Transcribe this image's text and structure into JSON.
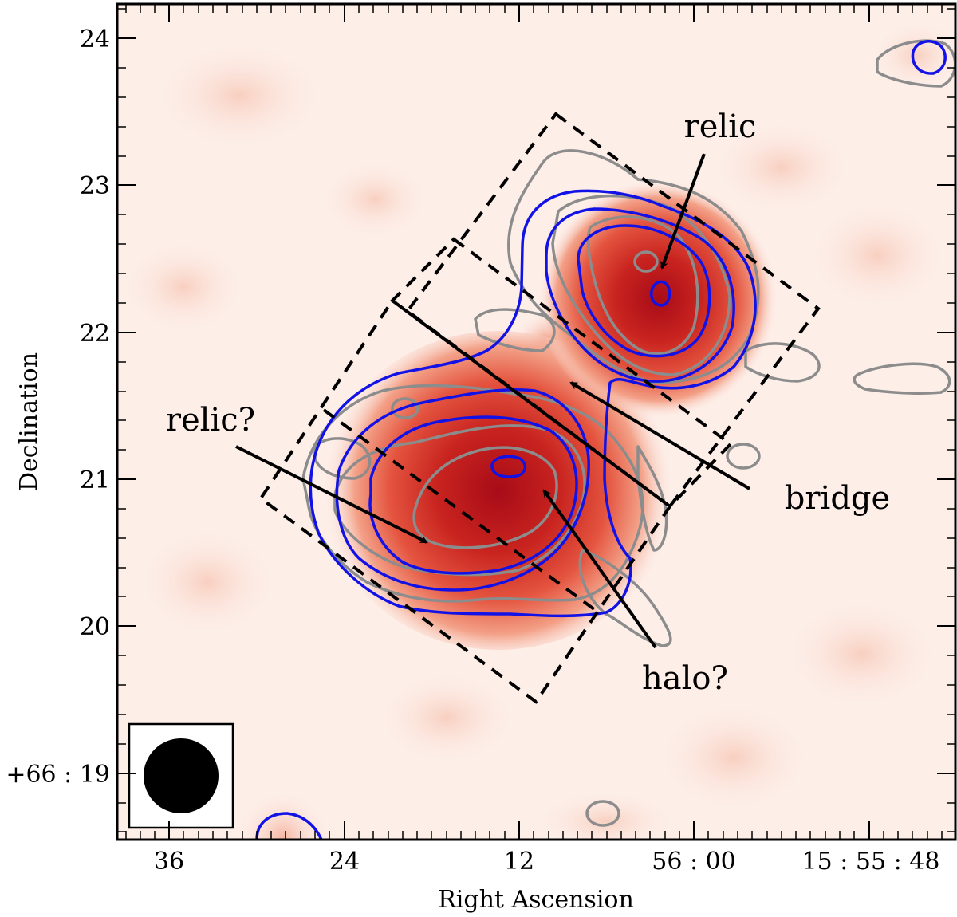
{
  "figure": {
    "xlabel": "Right Ascension",
    "ylabel": "Declination",
    "x_ticks": [
      "36",
      "24",
      "12",
      "56 : 00",
      "15 : 55 : 48"
    ],
    "y_ticks": [
      "24",
      "23",
      "22",
      "21",
      "20",
      "+66 : 19"
    ],
    "annotations": {
      "relic_top": "relic",
      "relic_left": "relic?",
      "bridge": "bridge",
      "halo": "halo?"
    },
    "colors": {
      "emission_peak": "#b3101a",
      "emission_mid": "#e03a2f",
      "background": "#fdeee8",
      "contour_blue": "#1010e0",
      "contour_gray": "#8c8c8c",
      "region_box": "#000000"
    },
    "beam_marker": "filled-circle"
  }
}
